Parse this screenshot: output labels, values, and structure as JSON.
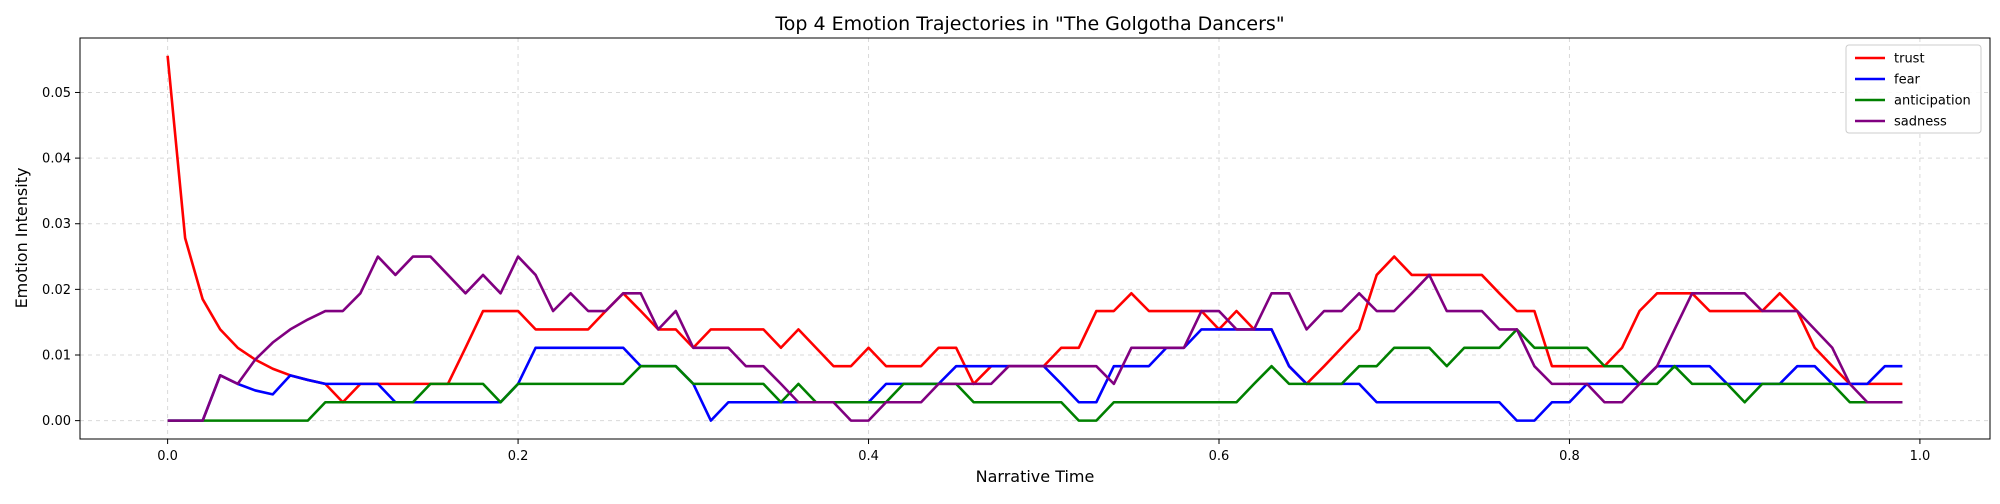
{
  "chart_data": {
    "type": "line",
    "title": "Top 4 Emotion Trajectories in \"The Golgotha Dancers\"",
    "xlabel": "Narrative Time",
    "ylabel": "Emotion Intensity",
    "xlim": [
      -0.05,
      1.04
    ],
    "ylim": [
      -0.0028,
      0.0583
    ],
    "xticks": [
      0.0,
      0.2,
      0.4,
      0.6,
      0.8,
      1.0
    ],
    "xtick_labels": [
      "0.0",
      "0.2",
      "0.4",
      "0.6",
      "0.8",
      "1.0"
    ],
    "yticks": [
      0.0,
      0.01,
      0.02,
      0.03,
      0.04,
      0.05
    ],
    "ytick_labels": [
      "0.00",
      "0.01",
      "0.02",
      "0.03",
      "0.04",
      "0.05"
    ],
    "grid": true,
    "legend_position": "top-right",
    "x": [
      0.0,
      0.01,
      0.02,
      0.03,
      0.04,
      0.05,
      0.06,
      0.07,
      0.08,
      0.09,
      0.1,
      0.11,
      0.12,
      0.13,
      0.14,
      0.15,
      0.16,
      0.17,
      0.18,
      0.19,
      0.2,
      0.21,
      0.22,
      0.23,
      0.24,
      0.25,
      0.26,
      0.27,
      0.28,
      0.29,
      0.3,
      0.31,
      0.32,
      0.33,
      0.34,
      0.35,
      0.36,
      0.37,
      0.38,
      0.39,
      0.4,
      0.41,
      0.42,
      0.43,
      0.44,
      0.45,
      0.46,
      0.47,
      0.48,
      0.49,
      0.5,
      0.51,
      0.52,
      0.53,
      0.54,
      0.55,
      0.56,
      0.57,
      0.58,
      0.59,
      0.6,
      0.61,
      0.62,
      0.63,
      0.64,
      0.65,
      0.66,
      0.67,
      0.68,
      0.69,
      0.7,
      0.71,
      0.72,
      0.73,
      0.74,
      0.75,
      0.76,
      0.77,
      0.78,
      0.79,
      0.8,
      0.81,
      0.82,
      0.83,
      0.84,
      0.85,
      0.86,
      0.87,
      0.88,
      0.89,
      0.9,
      0.91,
      0.92,
      0.93,
      0.94,
      0.95,
      0.96,
      0.97,
      0.98,
      0.99
    ],
    "series": [
      {
        "name": "trust",
        "color": "#ff0000",
        "values": [
          0.0556,
          0.0278,
          0.0185,
          0.0139,
          0.0111,
          0.0093,
          0.0079,
          0.0069,
          0.0062,
          0.0056,
          0.0028,
          0.0056,
          0.0056,
          0.0056,
          0.0056,
          0.0056,
          0.0056,
          0.0111,
          0.0167,
          0.0167,
          0.0167,
          0.0139,
          0.0139,
          0.0139,
          0.0139,
          0.0167,
          0.0194,
          0.0167,
          0.0139,
          0.0139,
          0.0111,
          0.0139,
          0.0139,
          0.0139,
          0.0139,
          0.0111,
          0.0139,
          0.0111,
          0.0083,
          0.0083,
          0.0111,
          0.0083,
          0.0083,
          0.0083,
          0.0111,
          0.0111,
          0.0056,
          0.0083,
          0.0083,
          0.0083,
          0.0083,
          0.0111,
          0.0111,
          0.0167,
          0.0167,
          0.0194,
          0.0167,
          0.0167,
          0.0167,
          0.0167,
          0.0139,
          0.0167,
          0.0139,
          0.0139,
          0.0083,
          0.0056,
          0.0083,
          0.0111,
          0.0139,
          0.0222,
          0.025,
          0.0222,
          0.0222,
          0.0222,
          0.0222,
          0.0222,
          0.0194,
          0.0167,
          0.0167,
          0.0083,
          0.0083,
          0.0083,
          0.0083,
          0.0111,
          0.0167,
          0.0194,
          0.0194,
          0.0194,
          0.0167,
          0.0167,
          0.0167,
          0.0167,
          0.0194,
          0.0167,
          0.0111,
          0.0083,
          0.0056,
          0.0056,
          0.0056,
          0.0056
        ]
      },
      {
        "name": "fear",
        "color": "#0000ff",
        "values": [
          0.0,
          0.0,
          0.0,
          0.0069,
          0.0056,
          0.0046,
          0.004,
          0.0069,
          0.0062,
          0.0056,
          0.0056,
          0.0056,
          0.0056,
          0.0028,
          0.0028,
          0.0028,
          0.0028,
          0.0028,
          0.0028,
          0.0028,
          0.0056,
          0.0111,
          0.0111,
          0.0111,
          0.0111,
          0.0111,
          0.0111,
          0.0083,
          0.0083,
          0.0083,
          0.0056,
          0.0,
          0.0028,
          0.0028,
          0.0028,
          0.0028,
          0.0028,
          0.0028,
          0.0028,
          0.0028,
          0.0028,
          0.0056,
          0.0056,
          0.0056,
          0.0056,
          0.0083,
          0.0083,
          0.0083,
          0.0083,
          0.0083,
          0.0083,
          0.0056,
          0.0028,
          0.0028,
          0.0083,
          0.0083,
          0.0083,
          0.0111,
          0.0111,
          0.0139,
          0.0139,
          0.0139,
          0.0139,
          0.0139,
          0.0083,
          0.0056,
          0.0056,
          0.0056,
          0.0056,
          0.0028,
          0.0028,
          0.0028,
          0.0028,
          0.0028,
          0.0028,
          0.0028,
          0.0028,
          0.0,
          0.0,
          0.0028,
          0.0028,
          0.0056,
          0.0056,
          0.0056,
          0.0056,
          0.0083,
          0.0083,
          0.0083,
          0.0083,
          0.0056,
          0.0056,
          0.0056,
          0.0056,
          0.0083,
          0.0083,
          0.0056,
          0.0056,
          0.0056,
          0.0083,
          0.0083
        ]
      },
      {
        "name": "anticipation",
        "color": "#008000",
        "values": [
          0.0,
          0.0,
          0.0,
          0.0,
          0.0,
          0.0,
          0.0,
          0.0,
          0.0,
          0.0028,
          0.0028,
          0.0028,
          0.0028,
          0.0028,
          0.0028,
          0.0056,
          0.0056,
          0.0056,
          0.0056,
          0.0028,
          0.0056,
          0.0056,
          0.0056,
          0.0056,
          0.0056,
          0.0056,
          0.0056,
          0.0083,
          0.0083,
          0.0083,
          0.0056,
          0.0056,
          0.0056,
          0.0056,
          0.0056,
          0.0028,
          0.0056,
          0.0028,
          0.0028,
          0.0028,
          0.0028,
          0.0028,
          0.0056,
          0.0056,
          0.0056,
          0.0056,
          0.0028,
          0.0028,
          0.0028,
          0.0028,
          0.0028,
          0.0028,
          0.0,
          0.0,
          0.0028,
          0.0028,
          0.0028,
          0.0028,
          0.0028,
          0.0028,
          0.0028,
          0.0028,
          0.0056,
          0.0083,
          0.0056,
          0.0056,
          0.0056,
          0.0056,
          0.0083,
          0.0083,
          0.0111,
          0.0111,
          0.0111,
          0.0083,
          0.0111,
          0.0111,
          0.0111,
          0.0139,
          0.0111,
          0.0111,
          0.0111,
          0.0111,
          0.0083,
          0.0083,
          0.0056,
          0.0056,
          0.0083,
          0.0056,
          0.0056,
          0.0056,
          0.0028,
          0.0056,
          0.0056,
          0.0056,
          0.0056,
          0.0056,
          0.0028,
          0.0028,
          0.0028,
          0.0028
        ]
      },
      {
        "name": "sadness",
        "color": "#800080",
        "values": [
          0.0,
          0.0,
          0.0,
          0.0069,
          0.0056,
          0.0093,
          0.0119,
          0.0139,
          0.0154,
          0.0167,
          0.0167,
          0.0194,
          0.025,
          0.0222,
          0.025,
          0.025,
          0.0222,
          0.0194,
          0.0222,
          0.0194,
          0.025,
          0.0222,
          0.0167,
          0.0194,
          0.0167,
          0.0167,
          0.0194,
          0.0194,
          0.0139,
          0.0167,
          0.0111,
          0.0111,
          0.0111,
          0.0083,
          0.0083,
          0.0056,
          0.0028,
          0.0028,
          0.0028,
          0.0,
          0.0,
          0.0028,
          0.0028,
          0.0028,
          0.0056,
          0.0056,
          0.0056,
          0.0056,
          0.0083,
          0.0083,
          0.0083,
          0.0083,
          0.0083,
          0.0083,
          0.0056,
          0.0111,
          0.0111,
          0.0111,
          0.0111,
          0.0167,
          0.0167,
          0.0139,
          0.0139,
          0.0194,
          0.0194,
          0.0139,
          0.0167,
          0.0167,
          0.0194,
          0.0167,
          0.0167,
          0.0194,
          0.0222,
          0.0167,
          0.0167,
          0.0167,
          0.0139,
          0.0139,
          0.0083,
          0.0056,
          0.0056,
          0.0056,
          0.0028,
          0.0028,
          0.0056,
          0.0083,
          0.0139,
          0.0194,
          0.0194,
          0.0194,
          0.0194,
          0.0167,
          0.0167,
          0.0167,
          0.0139,
          0.0111,
          0.0056,
          0.0028,
          0.0028,
          0.0028
        ]
      }
    ]
  }
}
